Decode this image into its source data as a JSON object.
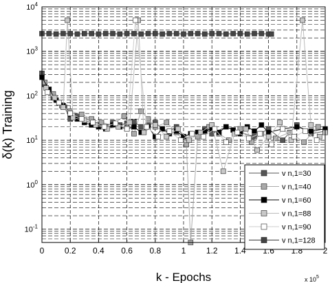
{
  "chart_data": {
    "type": "line",
    "xlabel": "k - Epochs",
    "ylabel": "δ(k) Training",
    "x_multiplier_base": "x 10",
    "x_multiplier_exp": "5",
    "xlim": [
      0,
      200000
    ],
    "ylim": [
      0.05,
      10000
    ],
    "yscale": "log",
    "grid": true,
    "legend_position": "bottom-right",
    "x_ticks": [
      0,
      20000,
      40000,
      60000,
      80000,
      100000,
      120000,
      140000,
      160000,
      180000,
      200000
    ],
    "x_tick_labels": [
      "0",
      "0.2",
      "0.4",
      "0.6",
      "0.8",
      "1",
      "1.2",
      "1.4",
      "1.6",
      "1.8",
      "2"
    ],
    "y_ticks": [
      0.1,
      1,
      10,
      100,
      1000,
      10000
    ],
    "y_tick_bases": [
      "10",
      "10",
      "10",
      "10",
      "10",
      "10"
    ],
    "y_tick_exps": [
      "-1",
      "0",
      "1",
      "2",
      "3",
      "4"
    ],
    "series": [
      {
        "name": "v n,1=30",
        "color": "#555555",
        "marker_fill": "#555555",
        "x": [
          0,
          2000,
          5000,
          8000,
          12000,
          16000,
          20000,
          25000,
          30000,
          35000,
          40000,
          45000,
          50000,
          55000,
          60000,
          65000,
          70000,
          75000,
          80000,
          85000,
          90000,
          95000,
          100000,
          105000,
          110000,
          115000,
          120000,
          130000,
          140000,
          150000,
          160000,
          170000,
          180000,
          190000,
          200000
        ],
        "y": [
          320,
          180,
          120,
          90,
          70,
          55,
          30,
          35,
          28,
          25,
          22,
          20,
          25,
          22,
          24,
          26,
          20,
          22,
          25,
          18,
          16,
          20,
          12,
          14,
          15,
          18,
          14,
          20,
          15,
          12,
          18,
          10,
          22,
          14,
          16
        ]
      },
      {
        "name": "v n,1=40",
        "color": "#aaaaaa",
        "marker_fill": "#aaaaaa",
        "x": [
          2000,
          8000,
          14000,
          20000,
          28000,
          35000,
          42000,
          50000,
          58000,
          65000,
          70000,
          75000,
          80000,
          88000,
          95000,
          102000,
          105000,
          110000,
          118000,
          125000,
          132000,
          140000,
          148000,
          155000,
          165000,
          175000,
          185000,
          195000
        ],
        "y": [
          200,
          110,
          60,
          45,
          38,
          30,
          25,
          22,
          35,
          14,
          45,
          30,
          20,
          25,
          15,
          8,
          0.05,
          12,
          20,
          14,
          10,
          18,
          9,
          14,
          11,
          15,
          9,
          20
        ]
      },
      {
        "name": "v n,1=60",
        "color": "#000000",
        "marker_fill": "#000000",
        "x": [
          0,
          5000,
          10000,
          15000,
          20000,
          25000,
          30000,
          35000,
          40000,
          45000,
          50000,
          55000,
          60000,
          65000,
          70000,
          75000,
          80000,
          85000,
          90000,
          95000,
          100000,
          105000,
          110000,
          115000,
          120000,
          125000,
          130000,
          135000,
          140000,
          145000,
          150000,
          155000,
          160000,
          170000,
          180000,
          190000,
          200000
        ],
        "y": [
          260,
          140,
          80,
          60,
          38,
          30,
          25,
          22,
          20,
          18,
          22,
          20,
          18,
          20,
          15,
          20,
          12,
          18,
          14,
          16,
          12,
          14,
          15,
          16,
          18,
          15,
          20,
          17,
          14,
          20,
          16,
          22,
          15,
          18,
          20,
          16,
          18
        ]
      },
      {
        "name": "v n,1=88",
        "color": "#bbbbbb",
        "marker_fill": "#c8c8c8",
        "x": [
          3000,
          9000,
          15000,
          18000,
          22000,
          30000,
          38000,
          46000,
          54000,
          62000,
          68000,
          72000,
          80000,
          88000,
          96000,
          104000,
          112000,
          120000,
          128000,
          136000,
          144000,
          152000,
          160000,
          168000,
          176000,
          184000,
          190000,
          196000,
          200000
        ],
        "y": [
          150,
          90,
          55,
          5000,
          32,
          28,
          22,
          18,
          20,
          25,
          5000,
          15,
          22,
          12,
          18,
          10,
          15,
          22,
          2,
          14,
          18,
          6,
          12,
          25,
          10,
          5000,
          22,
          12,
          15
        ]
      },
      {
        "name": "v n,1=90",
        "color": "#cccccc",
        "marker_fill": "#ffffff",
        "x": [
          4000,
          12000,
          20000,
          28000,
          36000,
          44000,
          52000,
          60000,
          66000,
          74000,
          82000,
          90000,
          98000,
          106000,
          114000,
          122000,
          130000,
          138000,
          146000,
          154000,
          162000,
          170000,
          178000,
          186000,
          194000
        ],
        "y": [
          120,
          70,
          40,
          30,
          25,
          20,
          24,
          18,
          5000,
          20,
          12,
          16,
          10,
          14,
          12,
          18,
          9,
          15,
          11,
          14,
          8,
          18,
          12,
          16,
          10
        ]
      },
      {
        "name": "v n,1=128",
        "color": "#333333",
        "marker_fill": "#444444",
        "x": [
          0,
          5000,
          10000,
          15000,
          20000,
          25000,
          30000,
          35000,
          40000,
          45000,
          50000,
          55000,
          60000,
          65000,
          70000,
          75000,
          80000,
          85000,
          90000,
          95000,
          100000,
          105000,
          110000,
          115000,
          120000,
          125000,
          130000,
          135000,
          140000,
          145000,
          150000,
          155000,
          160000,
          162000
        ],
        "y": [
          2500,
          2500,
          2450,
          2500,
          2500,
          2450,
          2500,
          2500,
          2450,
          2500,
          2500,
          2450,
          2500,
          2500,
          2450,
          2500,
          2500,
          2450,
          2500,
          2500,
          2450,
          2500,
          2500,
          2450,
          2500,
          2500,
          2450,
          2500,
          2500,
          2450,
          2500,
          2500,
          2450,
          2450
        ]
      }
    ]
  }
}
